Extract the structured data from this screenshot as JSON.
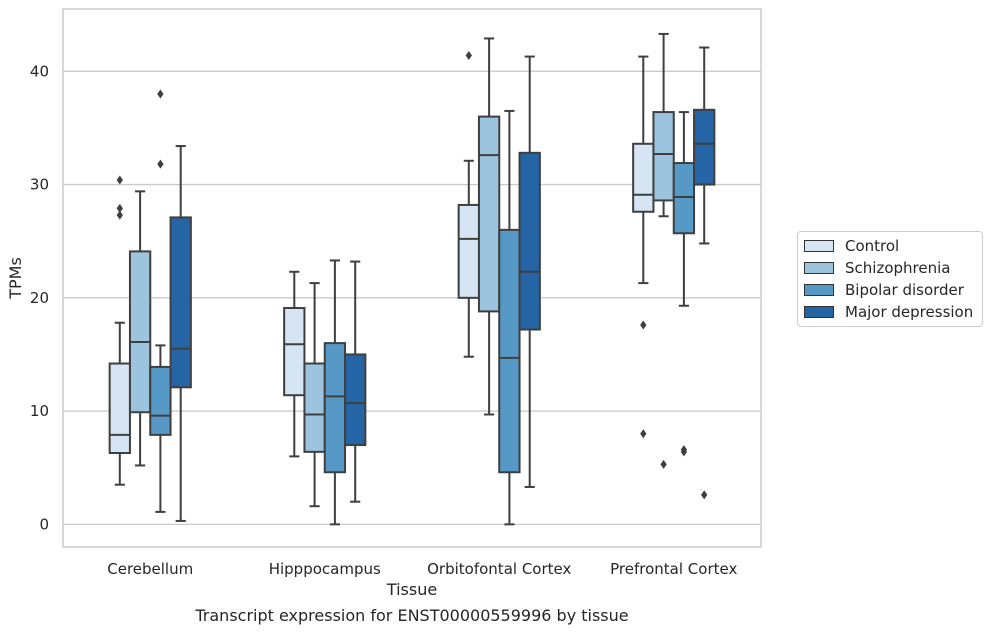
{
  "chart_data": {
    "type": "box",
    "title": "",
    "caption": "Transcript expression for ENST00000559996 by tissue",
    "xlabel": "Tissue",
    "ylabel": "TPMs",
    "ylim": [
      -2,
      45.5
    ],
    "yticks": [
      0,
      10,
      20,
      30,
      40
    ],
    "grid": true,
    "legend_position": "right",
    "categories": [
      "Cerebellum",
      "Hipppocampus",
      "Orbitofontal Cortex",
      "Prefrontal Cortex"
    ],
    "series": [
      {
        "name": "Control",
        "color": "#d6e5f3",
        "boxes": [
          {
            "whisker_low": 3.5,
            "q1": 6.3,
            "median": 7.9,
            "q3": 14.2,
            "whisker_high": 17.8,
            "outliers": [
              27.3,
              27.9,
              30.4
            ]
          },
          {
            "whisker_low": 6.0,
            "q1": 11.4,
            "median": 15.9,
            "q3": 19.1,
            "whisker_high": 22.3,
            "outliers": []
          },
          {
            "whisker_low": 14.8,
            "q1": 20.0,
            "median": 25.2,
            "q3": 28.2,
            "whisker_high": 32.1,
            "outliers": [
              41.4
            ]
          },
          {
            "whisker_low": 21.3,
            "q1": 27.6,
            "median": 29.1,
            "q3": 33.6,
            "whisker_high": 41.3,
            "outliers": [
              17.6,
              8.0
            ]
          }
        ]
      },
      {
        "name": "Schizophrenia",
        "color": "#9cc4de",
        "boxes": [
          {
            "whisker_low": 5.2,
            "q1": 9.9,
            "median": 16.1,
            "q3": 24.1,
            "whisker_high": 29.4,
            "outliers": []
          },
          {
            "whisker_low": 1.6,
            "q1": 6.4,
            "median": 9.7,
            "q3": 14.2,
            "whisker_high": 21.3,
            "outliers": []
          },
          {
            "whisker_low": 9.7,
            "q1": 18.8,
            "median": 32.6,
            "q3": 36.0,
            "whisker_high": 42.9,
            "outliers": []
          },
          {
            "whisker_low": 27.2,
            "q1": 28.6,
            "median": 32.7,
            "q3": 36.4,
            "whisker_high": 43.3,
            "outliers": [
              5.3
            ]
          }
        ]
      },
      {
        "name": "Bipolar disorder",
        "color": "#5799c6",
        "boxes": [
          {
            "whisker_low": 1.1,
            "q1": 7.9,
            "median": 9.6,
            "q3": 13.9,
            "whisker_high": 15.8,
            "outliers": [
              31.8,
              38.0
            ]
          },
          {
            "whisker_low": 0.0,
            "q1": 4.6,
            "median": 11.3,
            "q3": 16.0,
            "whisker_high": 23.3,
            "outliers": []
          },
          {
            "whisker_low": 0.0,
            "q1": 4.6,
            "median": 14.7,
            "q3": 26.0,
            "whisker_high": 36.5,
            "outliers": []
          },
          {
            "whisker_low": 19.3,
            "q1": 25.7,
            "median": 28.9,
            "q3": 31.9,
            "whisker_high": 36.4,
            "outliers": [
              6.4,
              6.6
            ]
          }
        ]
      },
      {
        "name": "Major depression",
        "color": "#2565a6",
        "boxes": [
          {
            "whisker_low": 0.3,
            "q1": 12.1,
            "median": 15.5,
            "q3": 27.1,
            "whisker_high": 33.4,
            "outliers": []
          },
          {
            "whisker_low": 2.0,
            "q1": 7.0,
            "median": 10.7,
            "q3": 15.0,
            "whisker_high": 23.2,
            "outliers": []
          },
          {
            "whisker_low": 3.3,
            "q1": 17.2,
            "median": 22.3,
            "q3": 32.8,
            "whisker_high": 41.3,
            "outliers": []
          },
          {
            "whisker_low": 24.8,
            "q1": 30.0,
            "median": 33.6,
            "q3": 36.6,
            "whisker_high": 42.1,
            "outliers": [
              2.6
            ]
          }
        ]
      }
    ]
  }
}
